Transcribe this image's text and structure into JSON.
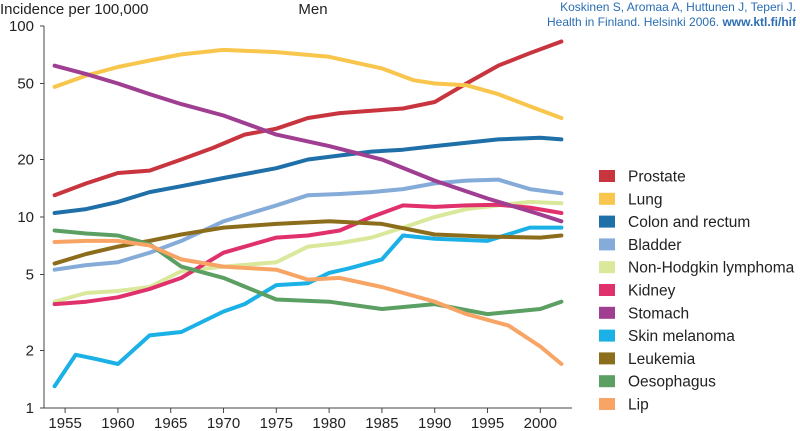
{
  "credit": {
    "line1": "Koskinen S, Aromaa A, Huttunen J, Teperi J.",
    "line2": "Health in Finland. Helsinki 2006.",
    "link": "www.ktl.fi/hif"
  },
  "chart_data": {
    "type": "line",
    "title": "Men",
    "ylabel": "Incidence per 100,000",
    "xlabel": "",
    "yscale": "log",
    "ylim": [
      1,
      100
    ],
    "xlim": [
      1953,
      2003
    ],
    "yticks": [
      1,
      2,
      5,
      10,
      20,
      50,
      100
    ],
    "ytick_labels": [
      "1",
      "2",
      "5",
      "10",
      "20",
      "50",
      "100"
    ],
    "xticks": [
      1955,
      1960,
      1965,
      1970,
      1975,
      1980,
      1985,
      1990,
      1995,
      2000
    ],
    "xtick_labels": [
      "1955",
      "1960",
      "1965",
      "1970",
      "1975",
      "1980",
      "1985",
      "1990",
      "1995",
      "2000"
    ],
    "grid": false,
    "legend_position": "right",
    "series": [
      {
        "name": "Prostate",
        "color": "#c8353f",
        "x": [
          1954,
          1957,
          1960,
          1963,
          1966,
          1969,
          1972,
          1975,
          1978,
          1981,
          1984,
          1987,
          1990,
          1993,
          1996,
          1999,
          2002
        ],
        "y": [
          13,
          15,
          17,
          17.5,
          20,
          23,
          27,
          29,
          33,
          35,
          36,
          37,
          40,
          50,
          62,
          72,
          83
        ]
      },
      {
        "name": "Lung",
        "color": "#f8c54d",
        "x": [
          1954,
          1957,
          1960,
          1963,
          1966,
          1970,
          1975,
          1980,
          1985,
          1988,
          1990,
          1993,
          1996,
          1999,
          2002
        ],
        "y": [
          48,
          55,
          61,
          66,
          71,
          75,
          73,
          69,
          60,
          52,
          50,
          49,
          44,
          38,
          33
        ]
      },
      {
        "name": "Colon and rectum",
        "color": "#1f6fa8",
        "x": [
          1954,
          1957,
          1960,
          1963,
          1966,
          1970,
          1975,
          1978,
          1981,
          1984,
          1987,
          1990,
          1993,
          1996,
          2000,
          2002
        ],
        "y": [
          10.5,
          11,
          12,
          13.5,
          14.5,
          16,
          18,
          20,
          21,
          22,
          22.5,
          23.5,
          24.5,
          25.5,
          26,
          25.5
        ]
      },
      {
        "name": "Bladder",
        "color": "#85abd8",
        "x": [
          1954,
          1957,
          1960,
          1963,
          1966,
          1970,
          1975,
          1978,
          1981,
          1984,
          1987,
          1990,
          1993,
          1996,
          1999,
          2002
        ],
        "y": [
          5.3,
          5.6,
          5.8,
          6.5,
          7.5,
          9.5,
          11.5,
          13,
          13.2,
          13.5,
          14,
          15,
          15.5,
          15.7,
          14,
          13.3
        ]
      },
      {
        "name": "Non-Hodgkin lymphoma",
        "color": "#d9e89a",
        "x": [
          1954,
          1957,
          1960,
          1963,
          1966,
          1970,
          1975,
          1978,
          1981,
          1984,
          1987,
          1990,
          1993,
          1996,
          1999,
          2002
        ],
        "y": [
          3.6,
          4,
          4.1,
          4.3,
          5.2,
          5.5,
          5.8,
          7,
          7.3,
          7.8,
          8.8,
          10,
          11,
          11.5,
          12,
          11.8
        ]
      },
      {
        "name": "Kidney",
        "color": "#e0316d",
        "x": [
          1954,
          1957,
          1960,
          1963,
          1966,
          1970,
          1975,
          1978,
          1981,
          1984,
          1987,
          1990,
          1993,
          1996,
          1999,
          2002
        ],
        "y": [
          3.5,
          3.6,
          3.8,
          4.2,
          4.8,
          6.5,
          7.8,
          8,
          8.5,
          10,
          11.5,
          11.3,
          11.5,
          11.6,
          11.2,
          10.5
        ]
      },
      {
        "name": "Stomach",
        "color": "#a03e92",
        "x": [
          1954,
          1957,
          1960,
          1963,
          1966,
          1970,
          1975,
          1980,
          1985,
          1990,
          1995,
          2000,
          2002
        ],
        "y": [
          62,
          56,
          50,
          44,
          39,
          34,
          27,
          23.5,
          20,
          15.5,
          12.5,
          10.3,
          9.5
        ]
      },
      {
        "name": "Skin melanoma",
        "color": "#1bb1e6",
        "x": [
          1954,
          1956,
          1958,
          1960,
          1963,
          1966,
          1970,
          1972,
          1975,
          1978,
          1980,
          1982,
          1985,
          1987,
          1990,
          1995,
          1999,
          2002
        ],
        "y": [
          1.3,
          1.9,
          1.8,
          1.7,
          2.4,
          2.5,
          3.2,
          3.5,
          4.4,
          4.5,
          5.1,
          5.4,
          6,
          8,
          7.7,
          7.5,
          8.8,
          8.8
        ]
      },
      {
        "name": "Leukemia",
        "color": "#8b6d1c",
        "x": [
          1954,
          1957,
          1960,
          1963,
          1966,
          1970,
          1975,
          1980,
          1985,
          1990,
          1995,
          2000,
          2002
        ],
        "y": [
          5.7,
          6.4,
          7,
          7.5,
          8.1,
          8.8,
          9.2,
          9.5,
          9.2,
          8.1,
          7.9,
          7.8,
          8
        ]
      },
      {
        "name": "Oesophagus",
        "color": "#5b9f63",
        "x": [
          1954,
          1957,
          1960,
          1963,
          1966,
          1970,
          1975,
          1980,
          1985,
          1990,
          1995,
          2000,
          2002
        ],
        "y": [
          8.5,
          8.2,
          8,
          7.2,
          5.5,
          4.8,
          3.7,
          3.6,
          3.3,
          3.5,
          3.1,
          3.3,
          3.6
        ]
      },
      {
        "name": "Lip",
        "color": "#f7a465",
        "x": [
          1954,
          1957,
          1960,
          1963,
          1966,
          1970,
          1975,
          1978,
          1981,
          1985,
          1990,
          1993,
          1997,
          2000,
          2002
        ],
        "y": [
          7.4,
          7.5,
          7.5,
          7.1,
          6,
          5.5,
          5.3,
          4.7,
          4.8,
          4.3,
          3.6,
          3.1,
          2.7,
          2.1,
          1.7
        ]
      }
    ]
  }
}
